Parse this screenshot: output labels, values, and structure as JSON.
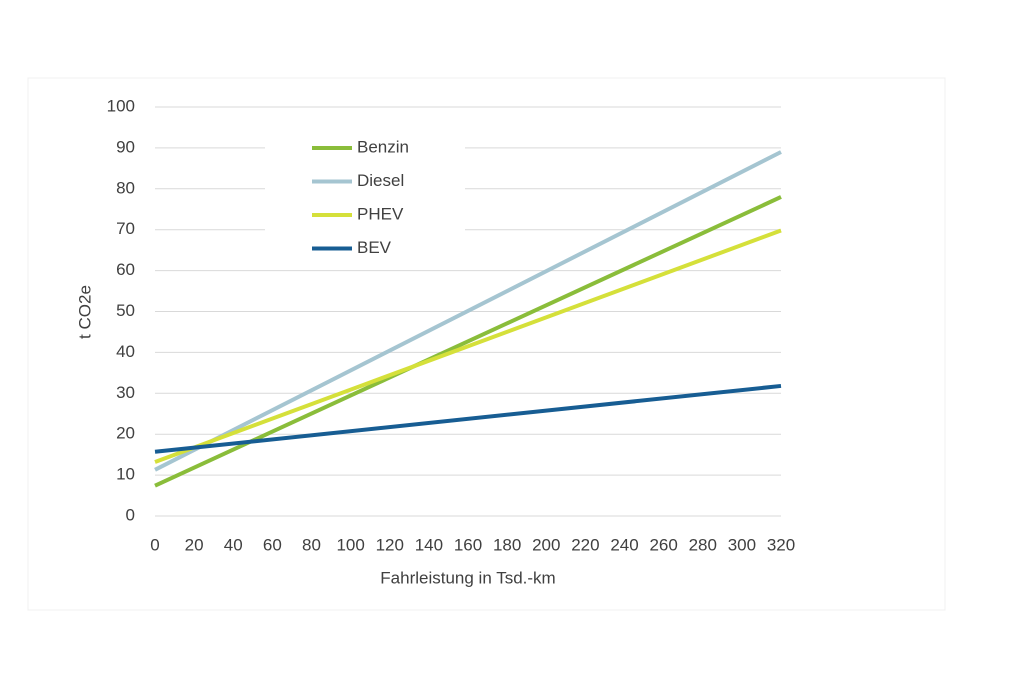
{
  "chart_data": {
    "type": "line",
    "x_label": "Fahrleistung in Tsd.-km",
    "y_label": "t CO2e",
    "x": [
      0,
      320
    ],
    "series": [
      {
        "name": "Benzin",
        "color": "#8abd3a",
        "values": [
          7.4,
          78
        ]
      },
      {
        "name": "Diesel",
        "color": "#a5c5d1",
        "values": [
          11.3,
          89
        ]
      },
      {
        "name": "PHEV",
        "color": "#d5e03a",
        "values": [
          13.2,
          69.8
        ]
      },
      {
        "name": "BEV",
        "color": "#175d93",
        "values": [
          15.7,
          31.8
        ]
      }
    ],
    "xlim": [
      0,
      320
    ],
    "xticks": [
      0,
      20,
      40,
      60,
      80,
      100,
      120,
      140,
      160,
      180,
      200,
      220,
      240,
      260,
      280,
      300,
      320
    ],
    "ylim": [
      0,
      100
    ],
    "yticks": [
      0,
      10,
      20,
      30,
      40,
      50,
      60,
      70,
      80,
      90,
      100
    ],
    "grid": true,
    "legend": "upper left"
  }
}
